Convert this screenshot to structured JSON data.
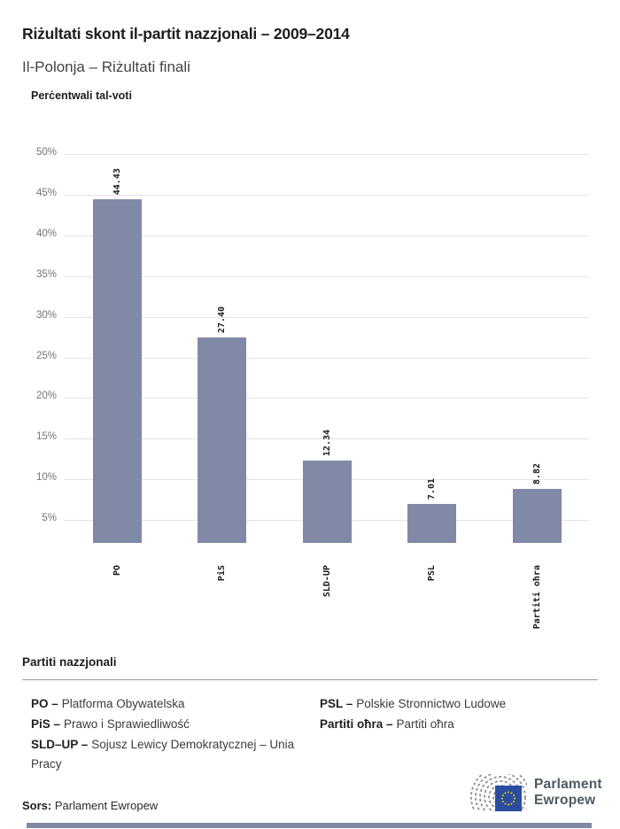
{
  "header": {
    "title": "Riżultati skont il-partit nazzjonali – 2009–2014",
    "subtitle": "Il-Polonja – Riżultati finali"
  },
  "chart_data": {
    "type": "bar",
    "title": "Perċentwali tal-voti",
    "categories": [
      "PO",
      "PiS",
      "SLD-UP",
      "PSL",
      "Partiti oħra"
    ],
    "values": [
      44.43,
      27.4,
      12.34,
      7.01,
      8.82
    ],
    "value_labels": [
      "44.43",
      "27.40",
      "12.34",
      "7.01",
      "8.82"
    ],
    "unit": "%",
    "y_ticks": [
      50,
      45,
      40,
      35,
      30,
      25,
      20,
      15,
      10,
      5
    ],
    "y_tick_labels": [
      "50%",
      "45%",
      "40%",
      "35%",
      "30%",
      "25%",
      "20%",
      "15%",
      "10%",
      "5%"
    ],
    "ylim": [
      2.2,
      51.5
    ],
    "grid": true,
    "bar_color": "#8089a6",
    "legend_position": "none",
    "value_label_rotation": -90,
    "category_label_rotation": -90
  },
  "legend": {
    "header": "Partiti nazzjonali",
    "items": [
      {
        "abbr": "PO –",
        "name": "Platforma Obywatelska"
      },
      {
        "abbr": "PiS –",
        "name": "Prawo i Sprawiedliwość"
      },
      {
        "abbr": "SLD–UP –",
        "name": "Sojusz Lewicy Demokratycznej – Unia Pracy"
      },
      {
        "abbr": "PSL –",
        "name": "Polskie Stronnictwo Ludowe"
      },
      {
        "abbr": "Partiti oħra –",
        "name": "Partiti oħra"
      }
    ]
  },
  "footer": {
    "source_label": "Sors:",
    "source_value": "Parlament Ewropew",
    "logo_line1": "Parlament",
    "logo_line2": "Ewropew"
  },
  "colors": {
    "accent_bar": "#8089a6",
    "eu_blue": "#2b4da0",
    "star_yellow": "#f7c600",
    "hemicycle_gray": "#8a909a",
    "logo_text": "#4e5a64"
  }
}
